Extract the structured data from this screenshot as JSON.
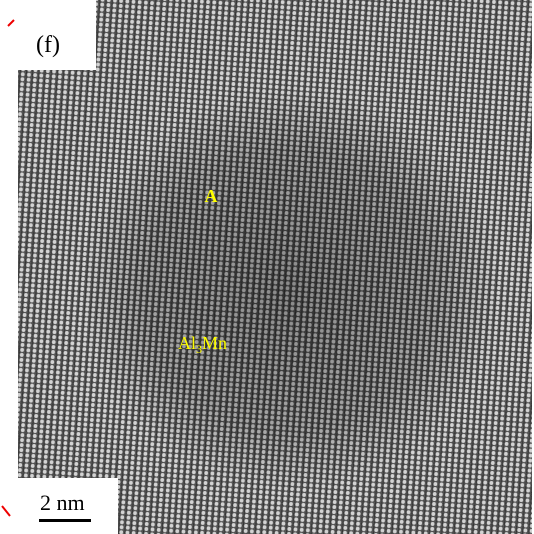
{
  "panel_label": "(f)",
  "annotations": [
    {
      "text": "A"
    },
    {
      "base": "Al",
      "sub": "3",
      "rest": "Mn"
    }
  ],
  "scale_bar": {
    "label": "2 nm"
  }
}
